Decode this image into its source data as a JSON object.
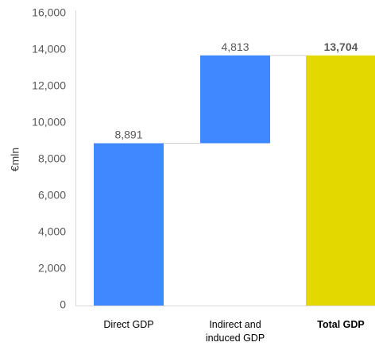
{
  "chart_data": {
    "type": "bar",
    "subtype": "waterfall",
    "categories": [
      "Direct GDP",
      "Indirect and induced GDP",
      "Total GDP"
    ],
    "category_lines": [
      [
        "Direct GDP"
      ],
      [
        "Indirect and",
        "induced GDP"
      ],
      [
        "Total GDP"
      ]
    ],
    "values": [
      8891,
      4813,
      13704
    ],
    "bar_starts": [
      0,
      8891,
      0
    ],
    "data_labels": [
      "8,891",
      "4,813",
      "13,704"
    ],
    "bold_categories": [
      false,
      false,
      true
    ],
    "ylabel": "€mln",
    "ylim": [
      0,
      16000
    ],
    "yticks": [
      0,
      2000,
      4000,
      6000,
      8000,
      10000,
      12000,
      14000,
      16000
    ],
    "ytick_labels": [
      "0",
      "2,000",
      "4,000",
      "6,000",
      "8,000",
      "10,000",
      "12,000",
      "14,000",
      "16,000"
    ],
    "grid": false,
    "connector_lines": true,
    "colors": {
      "increase": "#3f88ff",
      "total": "#e3d800",
      "axis": "#d9d9d9",
      "connector": "#d0d0d0"
    }
  }
}
